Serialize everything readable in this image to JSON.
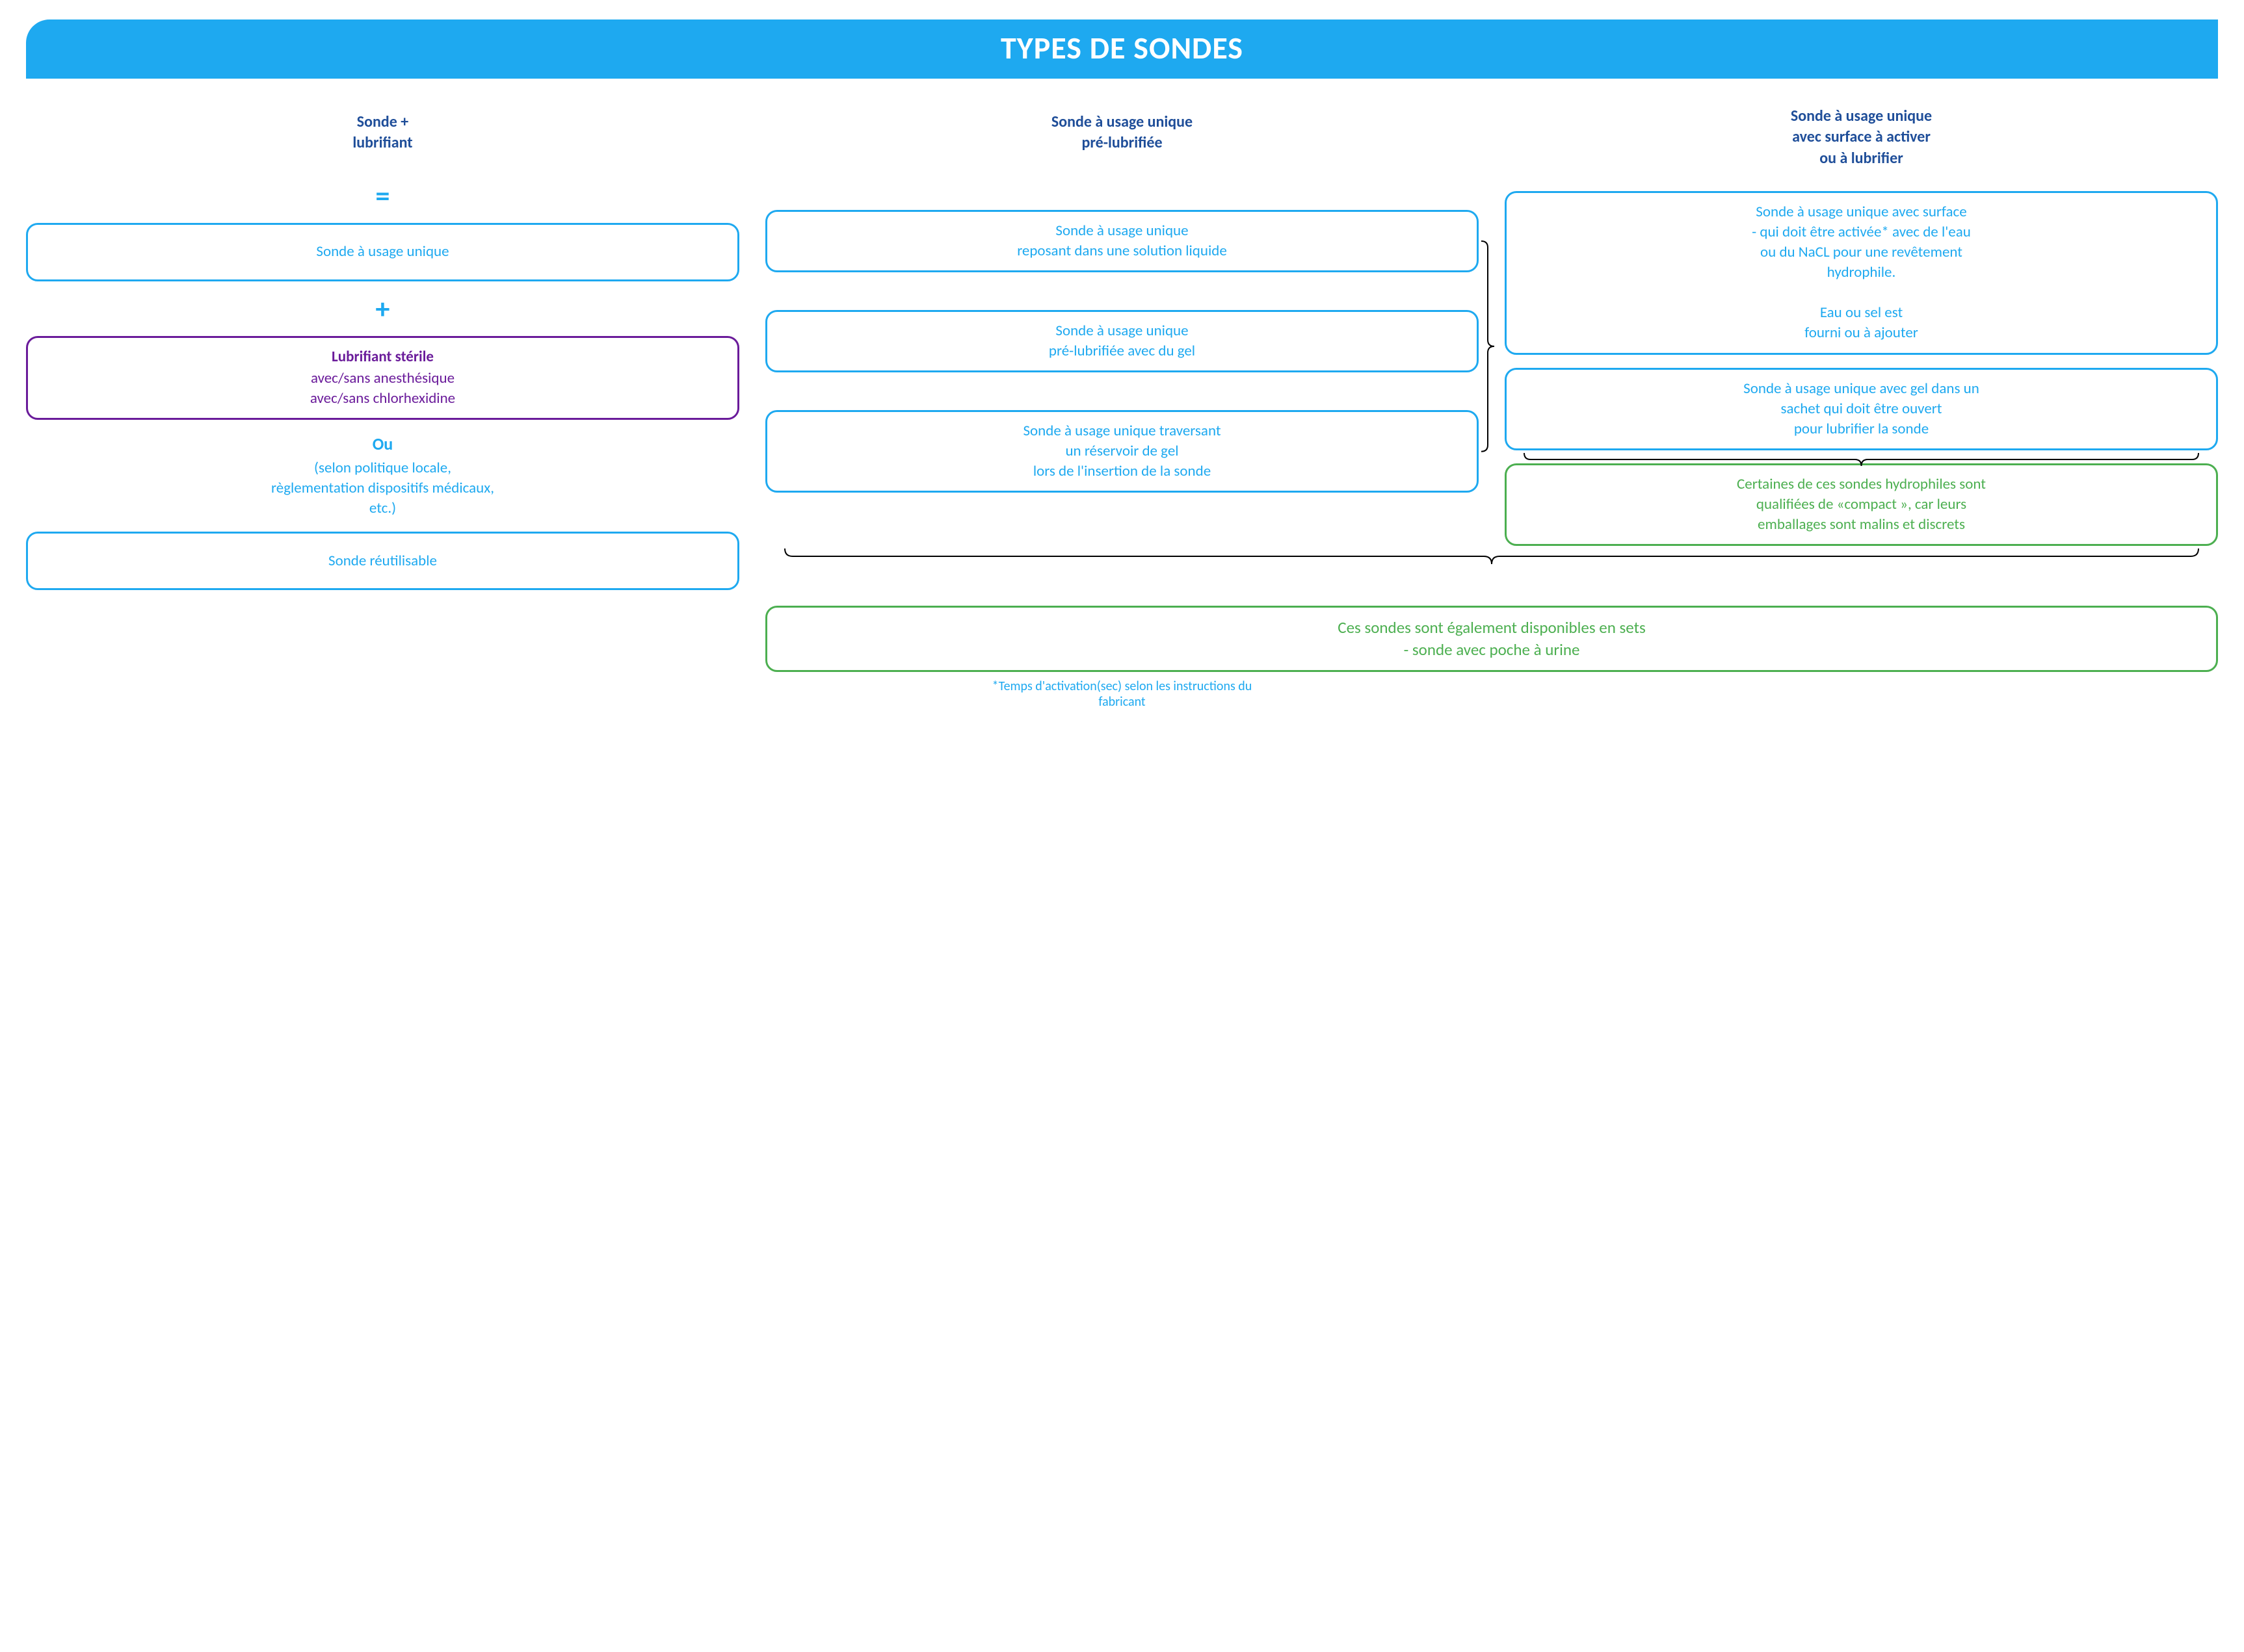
{
  "colors": {
    "title_bg": "#1ea9f0",
    "blue": "#1ea9f0",
    "darkblue": "#1f4e99",
    "purple": "#6a1b9a",
    "green": "#4caf50",
    "text_black": "#000000"
  },
  "title": "TYPES DE SONDES",
  "headers": {
    "col1": "Sonde +\nlubrifiant",
    "col2": "Sonde à usage unique\npré-lubrifiée",
    "col3": "Sonde à usage unique\navec  surface à activer\nou à lubrifier"
  },
  "col1": {
    "equals": "=",
    "b1": "Sonde à usage unique",
    "plus": "+",
    "b2_strong": "Lubrifiant stérile",
    "b2_rest": "avec/sans anesthésique\navec/sans chlorhexidine",
    "or_label": "Ou",
    "or_text": "(selon politique locale,\nrèglementation dispositifs médicaux,\netc.)",
    "b3": "Sonde réutilisable"
  },
  "col2": {
    "b1": "Sonde à usage unique\nreposant dans une solution liquide",
    "b2": "Sonde à usage unique\npré-lubrifiée avec du gel",
    "b3": "Sonde à usage unique traversant\nun réservoir de gel\nlors de l'insertion de la sonde"
  },
  "col3": {
    "b1": "Sonde à usage unique avec surface\n- qui doit être activée* avec de l'eau\nou du NaCL pour une revêtement\nhydrophile.\n\nEau ou sel est\nfourni ou à ajouter",
    "b2": "Sonde à usage unique avec gel dans un\nsachet qui doit être ouvert\npour lubrifier la sonde",
    "b3": "Certaines de ces sondes hydrophiles sont\nqualifiées de «compact », car leurs\nemballages sont malins et discrets"
  },
  "bottom_green": "Ces sondes sont également disponibles en sets\n- sonde avec poche à urine",
  "footnote": "*Temps d'activation(sec) selon les instructions du\nfabricant",
  "layout": {
    "font_family": "Calibri",
    "title_fontsize": 48,
    "box_fontsize": 23,
    "box_radius": 18,
    "box_border_width": 3,
    "grid_gap_col": 40,
    "grid_gap_row": 24,
    "title_radius_tl": 36
  }
}
